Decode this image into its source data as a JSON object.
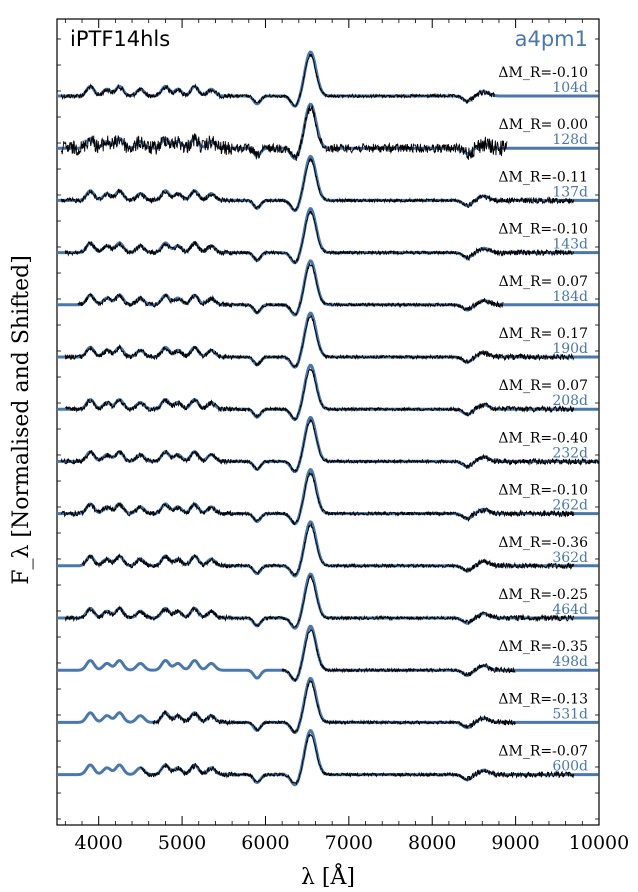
{
  "chart_data": {
    "type": "line",
    "title": "iPTF14hls",
    "model_label": "a4pm1",
    "xlabel": "λ [Å]",
    "ylabel": "F_λ [Normalised and Shifted]",
    "xlim": [
      3500,
      10000
    ],
    "xticks": [
      4000,
      5000,
      6000,
      7000,
      8000,
      9000,
      10000
    ],
    "xtick_labels": [
      "4000",
      "5000",
      "6000",
      "7000",
      "8000",
      "9000",
      "10000"
    ],
    "colors": {
      "model": "#4a78ac",
      "observed": "#000000"
    },
    "series": [
      {
        "epoch": "104d",
        "delta_mr": "ΔM_R=-0.10",
        "obs_range": [
          3550,
          8750
        ]
      },
      {
        "epoch": "128d",
        "delta_mr": "ΔM_R= 0.00",
        "obs_range": [
          3550,
          8900
        ]
      },
      {
        "epoch": "137d",
        "delta_mr": "ΔM_R=-0.11",
        "obs_range": [
          3550,
          9700
        ]
      },
      {
        "epoch": "143d",
        "delta_mr": "ΔM_R=-0.10",
        "obs_range": [
          3600,
          9700
        ]
      },
      {
        "epoch": "184d",
        "delta_mr": "ΔM_R= 0.07",
        "obs_range": [
          3750,
          8850
        ]
      },
      {
        "epoch": "190d",
        "delta_mr": "ΔM_R= 0.17",
        "obs_range": [
          3600,
          9700
        ]
      },
      {
        "epoch": "208d",
        "delta_mr": "ΔM_R= 0.07",
        "obs_range": [
          3600,
          9700
        ]
      },
      {
        "epoch": "232d",
        "delta_mr": "ΔM_R=-0.40",
        "obs_range": [
          3550,
          10000
        ]
      },
      {
        "epoch": "262d",
        "delta_mr": "ΔM_R=-0.10",
        "obs_range": [
          3550,
          9700
        ]
      },
      {
        "epoch": "362d",
        "delta_mr": "ΔM_R=-0.36",
        "obs_range": [
          3800,
          9700
        ]
      },
      {
        "epoch": "464d",
        "delta_mr": "ΔM_R=-0.25",
        "obs_range": [
          3600,
          9700
        ]
      },
      {
        "epoch": "498d",
        "delta_mr": "ΔM_R=-0.35",
        "obs_range": [
          6200,
          9000
        ]
      },
      {
        "epoch": "531d",
        "delta_mr": "ΔM_R=-0.13",
        "obs_range": [
          4650,
          9000
        ]
      },
      {
        "epoch": "600d",
        "delta_mr": "ΔM_R=-0.07",
        "obs_range": [
          4500,
          9700
        ]
      }
    ]
  }
}
